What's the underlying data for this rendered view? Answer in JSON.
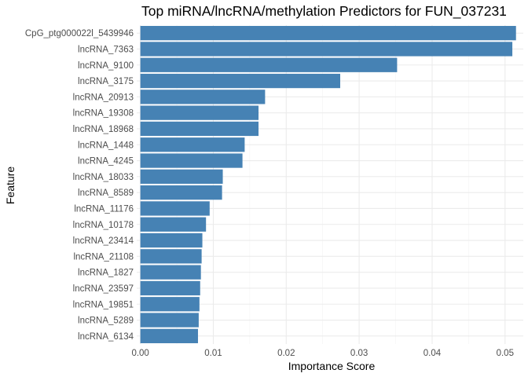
{
  "chart_data": {
    "type": "bar",
    "orientation": "horizontal",
    "title": "Top miRNA/lncRNA/methylation Predictors for FUN_037231",
    "xlabel": "Importance Score",
    "ylabel": "Feature",
    "xlim": [
      -0.0005,
      0.0525
    ],
    "x_ticks": [
      0.0,
      0.01,
      0.02,
      0.03,
      0.04,
      0.05
    ],
    "x_tick_labels": [
      "0.00",
      "0.01",
      "0.02",
      "0.03",
      "0.04",
      "0.05"
    ],
    "grid": true,
    "legend": "none",
    "bar_color": "#4682B4",
    "categories": [
      "CpG_ptg000022l_5439946",
      "lncRNA_7363",
      "lncRNA_9100",
      "lncRNA_3175",
      "lncRNA_20913",
      "lncRNA_19308",
      "lncRNA_18968",
      "lncRNA_1448",
      "lncRNA_4245",
      "lncRNA_18033",
      "lncRNA_8589",
      "lncRNA_11176",
      "lncRNA_10178",
      "lncRNA_23414",
      "lncRNA_21108",
      "lncRNA_1827",
      "lncRNA_23597",
      "lncRNA_19851",
      "lncRNA_5289",
      "lncRNA_6134"
    ],
    "values": [
      0.0515,
      0.051,
      0.0352,
      0.0274,
      0.0171,
      0.0162,
      0.0162,
      0.0143,
      0.014,
      0.0113,
      0.0112,
      0.0095,
      0.009,
      0.0085,
      0.0084,
      0.0083,
      0.0082,
      0.0081,
      0.008,
      0.0079
    ]
  }
}
